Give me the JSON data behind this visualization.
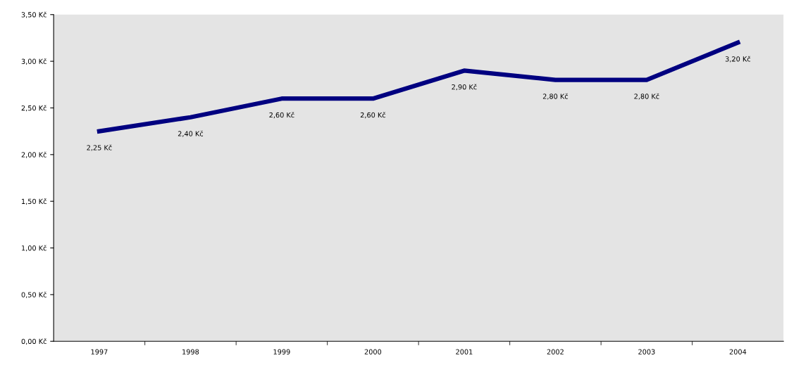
{
  "chart_data": {
    "type": "line",
    "categories": [
      "1997",
      "1998",
      "1999",
      "2000",
      "2001",
      "2002",
      "2003",
      "2004"
    ],
    "series": [
      {
        "color": "#000080",
        "values": [
          2.25,
          2.4,
          2.6,
          2.6,
          2.9,
          2.8,
          2.8,
          3.2
        ],
        "value_labels": [
          "2,25 Kč",
          "2,40 Kč",
          "2,60 Kč",
          "2,60 Kč",
          "2,90 Kč",
          "2,80 Kč",
          "2,80 Kč",
          "3,20 Kč"
        ]
      }
    ],
    "ylim": [
      0,
      3.5
    ],
    "yticks": [
      {
        "value": 0,
        "label": "0,00 Kč"
      },
      {
        "value": 0.5,
        "label": "0,50 Kč"
      },
      {
        "value": 1,
        "label": "1,00 Kč"
      },
      {
        "value": 1.5,
        "label": "1,50 Kč"
      },
      {
        "value": 2,
        "label": "2,00 Kč"
      },
      {
        "value": 2.5,
        "label": "2,50 Kč"
      },
      {
        "value": 3,
        "label": "3,00 Kč"
      },
      {
        "value": 3.5,
        "label": "3,50 Kč"
      }
    ],
    "marker": "none",
    "line_style": "solid"
  }
}
